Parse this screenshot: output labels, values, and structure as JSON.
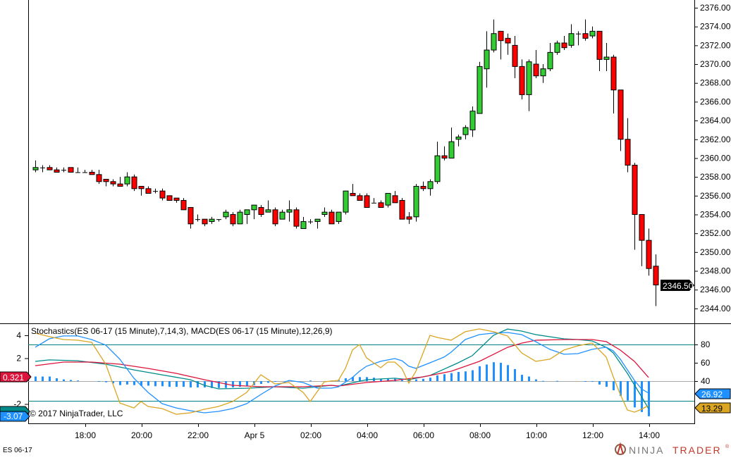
{
  "instrument": "ES 06-17",
  "copyright": "© 2017 NinjaTrader, LLC",
  "indicator_title": "Stochastics(ES 06-17 (15 Minute),7,14,3), MACD(ES 06-17 (15 Minute),12,26,9)",
  "logo": {
    "part1": "NINJA",
    "part2": "TRADER",
    "mark": "®"
  },
  "price_axis": {
    "labels": [
      "2376.00",
      "2374.00",
      "2372.00",
      "2370.00",
      "2368.00",
      "2366.00",
      "2364.00",
      "2362.00",
      "2360.00",
      "2358.00",
      "2356.00",
      "2354.00",
      "2352.00",
      "2350.00",
      "2348.00",
      "2346.00",
      "2344.00"
    ],
    "last_price": "2346.50"
  },
  "time_axis": {
    "labels": [
      "18:00",
      "20:00",
      "22:00",
      "Apr 5",
      "02:00",
      "04:00",
      "06:00",
      "08:00",
      "10:00",
      "12:00",
      "14:00"
    ]
  },
  "indicator_axis": {
    "left_labels": [
      "4",
      "2",
      "-2"
    ],
    "right_labels": [
      "80",
      "60",
      "40"
    ]
  },
  "flags": {
    "macd_avg": "0.321",
    "macd_diff": "-3.07",
    "stoch_d": "26.92",
    "stoch_k": "13.29"
  },
  "colors": {
    "up": "#32CD32",
    "down": "#FF0000",
    "stoch_k": "#DAA520",
    "stoch_d": "#1E90FF",
    "macd": "#008B8B",
    "macd_avg": "#DC143C",
    "diff": "#1E90FF",
    "level": "#008080"
  },
  "chart_data": {
    "type": "candlestick",
    "price_range": [
      2343,
      2376.8
    ],
    "candles": [
      [
        2358.75,
        2359.75,
        2358.5,
        2359
      ],
      [
        2359,
        2359.25,
        2358.5,
        2359
      ],
      [
        2359,
        2359.25,
        2358.75,
        2358.75
      ],
      [
        2358.75,
        2359,
        2358.5,
        2358.5
      ],
      [
        2358.75,
        2359,
        2358.5,
        2358.75
      ],
      [
        2359,
        2359,
        2358.5,
        2358.5
      ],
      [
        2358.5,
        2359,
        2358.5,
        2358.5
      ],
      [
        2358.5,
        2358.75,
        2358.5,
        2358.5
      ],
      [
        2358.5,
        2358.75,
        2358.25,
        2358.25
      ],
      [
        2358.25,
        2358.75,
        2357.25,
        2357.5
      ],
      [
        2357.75,
        2357.75,
        2357,
        2357.5
      ],
      [
        2357.5,
        2357.75,
        2357,
        2357.25
      ],
      [
        2357.25,
        2358,
        2357,
        2357
      ],
      [
        2357.25,
        2358.5,
        2357,
        2358
      ],
      [
        2358,
        2358.25,
        2356.5,
        2356.75
      ],
      [
        2357,
        2357,
        2356,
        2356.75
      ],
      [
        2356.75,
        2357,
        2356.25,
        2356.25
      ],
      [
        2356.5,
        2356.75,
        2356.25,
        2356.5
      ],
      [
        2356.5,
        2356.75,
        2355.5,
        2355.75
      ],
      [
        2356,
        2356,
        2355.5,
        2355.5
      ],
      [
        2355.75,
        2355.75,
        2355.25,
        2355.5
      ],
      [
        2355.5,
        2355.75,
        2354.5,
        2354.5
      ],
      [
        2354.75,
        2354.75,
        2352.5,
        2353
      ],
      [
        2353.5,
        2354,
        2353.25,
        2353.5
      ],
      [
        2353.5,
        2353.5,
        2352.75,
        2353
      ],
      [
        2353.25,
        2353.75,
        2353,
        2353.5
      ],
      [
        2353.5,
        2353.5,
        2353.25,
        2353.5
      ],
      [
        2353.75,
        2354.5,
        2353.5,
        2354.25
      ],
      [
        2354,
        2354.25,
        2352.75,
        2353
      ],
      [
        2353,
        2354.5,
        2353,
        2354.25
      ],
      [
        2354,
        2354.5,
        2353,
        2354.5
      ],
      [
        2354.5,
        2355,
        2353.5,
        2355
      ],
      [
        2354.75,
        2355,
        2353.75,
        2354
      ],
      [
        2354.25,
        2355.5,
        2354.25,
        2354.5
      ],
      [
        2354.5,
        2354.75,
        2352.75,
        2353
      ],
      [
        2353.5,
        2354.5,
        2353.5,
        2354.25
      ],
      [
        2354.25,
        2355.5,
        2353.25,
        2354.5
      ],
      [
        2354.5,
        2354.75,
        2352.5,
        2352.75
      ],
      [
        2352.5,
        2353.75,
        2352.5,
        2353.25
      ],
      [
        2353.25,
        2353.5,
        2353,
        2353.25
      ],
      [
        2353.25,
        2353.5,
        2352.5,
        2353.5
      ],
      [
        2354,
        2354.75,
        2353.75,
        2354.25
      ],
      [
        2354.25,
        2354.5,
        2353,
        2353
      ],
      [
        2353.25,
        2354.25,
        2353,
        2354.25
      ],
      [
        2354.25,
        2356.5,
        2354,
        2356.5
      ],
      [
        2356.25,
        2357.25,
        2356,
        2356
      ],
      [
        2356,
        2356.25,
        2355.5,
        2355.5
      ],
      [
        2356,
        2356.25,
        2354.75,
        2354.75
      ],
      [
        2355.25,
        2355.75,
        2355.25,
        2355.25
      ],
      [
        2355.25,
        2355.5,
        2354.75,
        2354.75
      ],
      [
        2355,
        2356.25,
        2354.75,
        2356.25
      ],
      [
        2356,
        2356.5,
        2355.25,
        2355.25
      ],
      [
        2355.5,
        2355.75,
        2353.5,
        2353.5
      ],
      [
        2353.75,
        2354.25,
        2353,
        2353.5
      ],
      [
        2353.75,
        2357.25,
        2353.25,
        2357
      ],
      [
        2357,
        2357.5,
        2356.5,
        2356.75
      ],
      [
        2356.75,
        2357.75,
        2356,
        2357.5
      ],
      [
        2357.5,
        2361.75,
        2357.25,
        2360.25
      ],
      [
        2360.25,
        2361.25,
        2359.75,
        2360
      ],
      [
        2360,
        2363.25,
        2360,
        2361.75
      ],
      [
        2362,
        2362.5,
        2361.25,
        2362.25
      ],
      [
        2362.5,
        2363.5,
        2362,
        2363.25
      ],
      [
        2363,
        2365.5,
        2362.25,
        2365
      ],
      [
        2364.75,
        2370.25,
        2364.75,
        2369.75
      ],
      [
        2369.5,
        2373.5,
        2367.5,
        2371.5
      ],
      [
        2371.5,
        2374.75,
        2371.25,
        2373.25
      ],
      [
        2373.5,
        2373.5,
        2370.5,
        2372.5
      ],
      [
        2372.75,
        2373.25,
        2371,
        2372.25
      ],
      [
        2372,
        2373,
        2368.5,
        2369.75
      ],
      [
        2369.75,
        2370.5,
        2366.25,
        2366.75
      ],
      [
        2366.75,
        2370.5,
        2365,
        2370.25
      ],
      [
        2370,
        2371.5,
        2368.5,
        2368.75
      ],
      [
        2368.75,
        2370,
        2368,
        2369.5
      ],
      [
        2369.5,
        2372.25,
        2369.25,
        2371.25
      ],
      [
        2371.25,
        2372.5,
        2371,
        2372.25
      ],
      [
        2372.25,
        2373,
        2371.5,
        2371.75
      ],
      [
        2372,
        2374.25,
        2371.75,
        2373.25
      ],
      [
        2373.25,
        2373.5,
        2372,
        2373.25
      ],
      [
        2373.25,
        2374.75,
        2372.5,
        2372.75
      ],
      [
        2373,
        2374,
        2372.75,
        2373.5
      ],
      [
        2373.5,
        2373.5,
        2369.25,
        2370.5
      ],
      [
        2370.5,
        2372.25,
        2369.25,
        2370.75
      ],
      [
        2370.75,
        2371,
        2364.75,
        2367.25
      ],
      [
        2367.25,
        2367.25,
        2360.75,
        2362
      ],
      [
        2362,
        2364.25,
        2358.5,
        2359.25
      ],
      [
        2359.25,
        2359.5,
        2350.25,
        2354
      ],
      [
        2354,
        2354,
        2348.5,
        2351.25
      ],
      [
        2351.25,
        2352.5,
        2347.5,
        2348.25
      ],
      [
        2348.5,
        2349.75,
        2344.25,
        2346.5
      ]
    ],
    "stochastics": {
      "levels": [
        80,
        20
      ],
      "k": [
        [
          0,
          92.4
        ],
        [
          2,
          88.5
        ],
        [
          4,
          85.4
        ],
        [
          6,
          84.7
        ],
        [
          8,
          82.4
        ],
        [
          10,
          58.5
        ],
        [
          12,
          16.1
        ],
        [
          14,
          10.7
        ],
        [
          15,
          17.7
        ],
        [
          16,
          12.3
        ],
        [
          18,
          10
        ],
        [
          20,
          3.8
        ],
        [
          22,
          5.4
        ],
        [
          24,
          9.2
        ],
        [
          26,
          12.3
        ],
        [
          28,
          17.7
        ],
        [
          30,
          27.7
        ],
        [
          32,
          46.9
        ],
        [
          34,
          36.9
        ],
        [
          36,
          38.5
        ],
        [
          38,
          27.7
        ],
        [
          39,
          17.7
        ],
        [
          41,
          39.2
        ],
        [
          43,
          40.8
        ],
        [
          44,
          53.9
        ],
        [
          45,
          73.9
        ],
        [
          46,
          80
        ],
        [
          47,
          65.4
        ],
        [
          49,
          54.6
        ],
        [
          50,
          60.8
        ],
        [
          51,
          60.8
        ],
        [
          52,
          53.9
        ],
        [
          53,
          37.7
        ],
        [
          54,
          50.8
        ],
        [
          56,
          90
        ],
        [
          57,
          87.7
        ],
        [
          59,
          84.7
        ],
        [
          61,
          93.9
        ],
        [
          63,
          97
        ],
        [
          65,
          93.9
        ],
        [
          67,
          89.3
        ],
        [
          69,
          70.8
        ],
        [
          71,
          61.6
        ],
        [
          73,
          63.9
        ],
        [
          75,
          73.9
        ],
        [
          77,
          78.5
        ],
        [
          79,
          81.6
        ],
        [
          81,
          66.2
        ],
        [
          82,
          44.6
        ],
        [
          83,
          25.4
        ],
        [
          84,
          8.5
        ],
        [
          85,
          6.1
        ],
        [
          86,
          9.2
        ],
        [
          87,
          13.29
        ]
      ],
      "d": [
        [
          0,
          77
        ],
        [
          2,
          86.2
        ],
        [
          4,
          89.3
        ],
        [
          6,
          89.3
        ],
        [
          8,
          85.4
        ],
        [
          10,
          79.3
        ],
        [
          12,
          63.9
        ],
        [
          14,
          43.1
        ],
        [
          16,
          27.7
        ],
        [
          18,
          15.4
        ],
        [
          20,
          10.7
        ],
        [
          22,
          7.7
        ],
        [
          24,
          5.4
        ],
        [
          26,
          6.9
        ],
        [
          28,
          10
        ],
        [
          30,
          15.4
        ],
        [
          32,
          25.4
        ],
        [
          34,
          34.6
        ],
        [
          36,
          40.8
        ],
        [
          38,
          38.5
        ],
        [
          40,
          32.3
        ],
        [
          42,
          32.3
        ],
        [
          43,
          33.8
        ],
        [
          45,
          43.9
        ],
        [
          46,
          50.8
        ],
        [
          47,
          56.2
        ],
        [
          49,
          61.6
        ],
        [
          51,
          64.6
        ],
        [
          52,
          62.3
        ],
        [
          53,
          56.2
        ],
        [
          54,
          53.9
        ],
        [
          56,
          60
        ],
        [
          58,
          66.2
        ],
        [
          59,
          71.6
        ],
        [
          61,
          85.4
        ],
        [
          63,
          90.8
        ],
        [
          65,
          92.4
        ],
        [
          67,
          93.1
        ],
        [
          69,
          90.8
        ],
        [
          71,
          83.1
        ],
        [
          73,
          74.7
        ],
        [
          75,
          69.3
        ],
        [
          77,
          70
        ],
        [
          79,
          74.7
        ],
        [
          81,
          77
        ],
        [
          82,
          73.1
        ],
        [
          83,
          63.9
        ],
        [
          84,
          52.3
        ],
        [
          85,
          40.8
        ],
        [
          86,
          31.5
        ],
        [
          87,
          26.92
        ]
      ]
    },
    "macd": {
      "macd": [
        [
          0,
          1.72
        ],
        [
          2,
          1.85
        ],
        [
          6,
          1.78
        ],
        [
          10,
          1.48
        ],
        [
          14,
          0.98
        ],
        [
          18,
          0.55
        ],
        [
          22,
          0.12
        ],
        [
          24,
          -0.37
        ],
        [
          26,
          -0.68
        ],
        [
          30,
          -0.62
        ],
        [
          34,
          -0.49
        ],
        [
          38,
          -0.62
        ],
        [
          42,
          -0.37
        ],
        [
          43,
          -0.43
        ],
        [
          47,
          0.12
        ],
        [
          51,
          0.25
        ],
        [
          53,
          0.12
        ],
        [
          56,
          0.49
        ],
        [
          60,
          1.6
        ],
        [
          62,
          2.22
        ],
        [
          65,
          4.0
        ],
        [
          67,
          4.55
        ],
        [
          69,
          4.37
        ],
        [
          71,
          4.06
        ],
        [
          75,
          3.69
        ],
        [
          77,
          3.63
        ],
        [
          79,
          3.51
        ],
        [
          81,
          2.95
        ],
        [
          82,
          2.46
        ],
        [
          84,
          0.68
        ],
        [
          86,
          -1.35
        ],
        [
          87,
          -2.4
        ]
      ],
      "avg": [
        [
          0,
          1.35
        ],
        [
          4,
          1.66
        ],
        [
          8,
          1.66
        ],
        [
          12,
          1.48
        ],
        [
          16,
          1.11
        ],
        [
          20,
          0.68
        ],
        [
          24,
          0.12
        ],
        [
          26,
          -0.12
        ],
        [
          28,
          -0.37
        ],
        [
          32,
          -0.49
        ],
        [
          38,
          -0.49
        ],
        [
          42,
          -0.37
        ],
        [
          43,
          -0.43
        ],
        [
          47,
          -0.12
        ],
        [
          51,
          0.06
        ],
        [
          55,
          0.37
        ],
        [
          59,
          0.86
        ],
        [
          63,
          1.72
        ],
        [
          67,
          2.95
        ],
        [
          69,
          3.32
        ],
        [
          71,
          3.57
        ],
        [
          75,
          3.63
        ],
        [
          79,
          3.63
        ],
        [
          81,
          3.45
        ],
        [
          83,
          2.71
        ],
        [
          85,
          1.72
        ],
        [
          87,
          0.321
        ]
      ],
      "diff": [
        0.4,
        0.4,
        0.4,
        0.25,
        0.15,
        0.1,
        0.05,
        0,
        0,
        -0.05,
        -0.1,
        -0.2,
        -0.35,
        -0.3,
        -0.35,
        -0.4,
        -0.4,
        -0.45,
        -0.45,
        -0.5,
        -0.5,
        -0.5,
        -0.55,
        -0.55,
        -0.55,
        -0.6,
        -0.6,
        -0.6,
        -0.55,
        -0.5,
        -0.45,
        -0.35,
        -0.25,
        -0.15,
        -0.05,
        0,
        0,
        0,
        0,
        0.05,
        0,
        0,
        0.05,
        0.1,
        0.25,
        0.35,
        0.35,
        0.35,
        0.3,
        0.2,
        0.2,
        0.2,
        0.1,
        0.1,
        0.15,
        0.2,
        0.3,
        0.5,
        0.6,
        0.7,
        0.8,
        0.85,
        0.95,
        1.3,
        1.45,
        1.65,
        1.6,
        1.4,
        1.05,
        0.55,
        0.4,
        0.15,
        0.02,
        0,
        0.02,
        0,
        0,
        0,
        -0.05,
        -0.05,
        -0.3,
        -0.5,
        -0.8,
        -1.3,
        -1.7,
        -2.3,
        -2.7,
        -3.07
      ]
    }
  }
}
